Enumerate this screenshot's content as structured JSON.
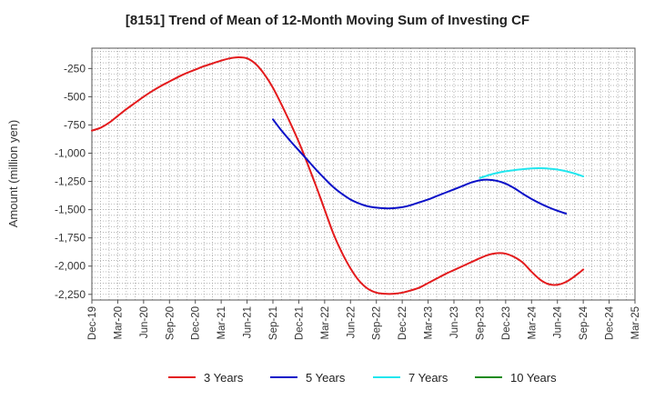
{
  "chart_data": {
    "type": "line",
    "title": "[8151]  Trend of Mean of 12-Month Moving Sum of Investing CF",
    "xlabel": "",
    "ylabel": "Amount (million yen)",
    "ylim": [
      -2300,
      -70
    ],
    "yticks": [
      -250,
      -500,
      -750,
      -1000,
      -1250,
      -1500,
      -1750,
      -2000,
      -2250
    ],
    "ytick_labels": [
      "-250",
      "-500",
      "-750",
      "-1,000",
      "-1,250",
      "-1,500",
      "-1,750",
      "-2,000",
      "-2,250"
    ],
    "x_tick_labels": [
      "Dec-19",
      "Mar-20",
      "Jun-20",
      "Sep-20",
      "Dec-20",
      "Mar-21",
      "Jun-21",
      "Sep-21",
      "Dec-21",
      "Mar-22",
      "Jun-22",
      "Sep-22",
      "Dec-22",
      "Mar-23",
      "Jun-23",
      "Sep-23",
      "Dec-23",
      "Mar-24",
      "Jun-24",
      "Sep-24",
      "Dec-24",
      "Mar-25"
    ],
    "x_start": "Dec-19",
    "series": [
      {
        "name": "3 Years",
        "color": "#e31a1c",
        "start_month": 0,
        "values": [
          -800,
          -775,
          -730,
          -670,
          -610,
          -555,
          -500,
          -450,
          -405,
          -365,
          -325,
          -290,
          -260,
          -230,
          -205,
          -180,
          -160,
          -150,
          -160,
          -210,
          -300,
          -420,
          -570,
          -730,
          -900,
          -1090,
          -1290,
          -1500,
          -1710,
          -1880,
          -2020,
          -2130,
          -2200,
          -2235,
          -2245,
          -2245,
          -2235,
          -2215,
          -2190,
          -2150,
          -2110,
          -2070,
          -2035,
          -2000,
          -1965,
          -1930,
          -1900,
          -1885,
          -1890,
          -1920,
          -1970,
          -2050,
          -2120,
          -2160,
          -2165,
          -2140,
          -2090,
          -2030
        ]
      },
      {
        "name": "5 Years",
        "color": "#0a10c8",
        "start_month": 21,
        "values": [
          -700,
          -800,
          -890,
          -975,
          -1060,
          -1145,
          -1225,
          -1300,
          -1360,
          -1410,
          -1445,
          -1470,
          -1482,
          -1488,
          -1487,
          -1478,
          -1460,
          -1435,
          -1410,
          -1380,
          -1350,
          -1320,
          -1290,
          -1260,
          -1240,
          -1235,
          -1245,
          -1270,
          -1310,
          -1360,
          -1405,
          -1445,
          -1480,
          -1510,
          -1535
        ]
      },
      {
        "name": "7 Years",
        "color": "#22e6ee",
        "start_month": 45,
        "values": [
          -1220,
          -1195,
          -1175,
          -1160,
          -1150,
          -1142,
          -1135,
          -1133,
          -1137,
          -1145,
          -1160,
          -1180,
          -1205
        ]
      },
      {
        "name": "10 Years",
        "color": "#1a8a1a",
        "start_month": 45,
        "values": []
      }
    ]
  }
}
